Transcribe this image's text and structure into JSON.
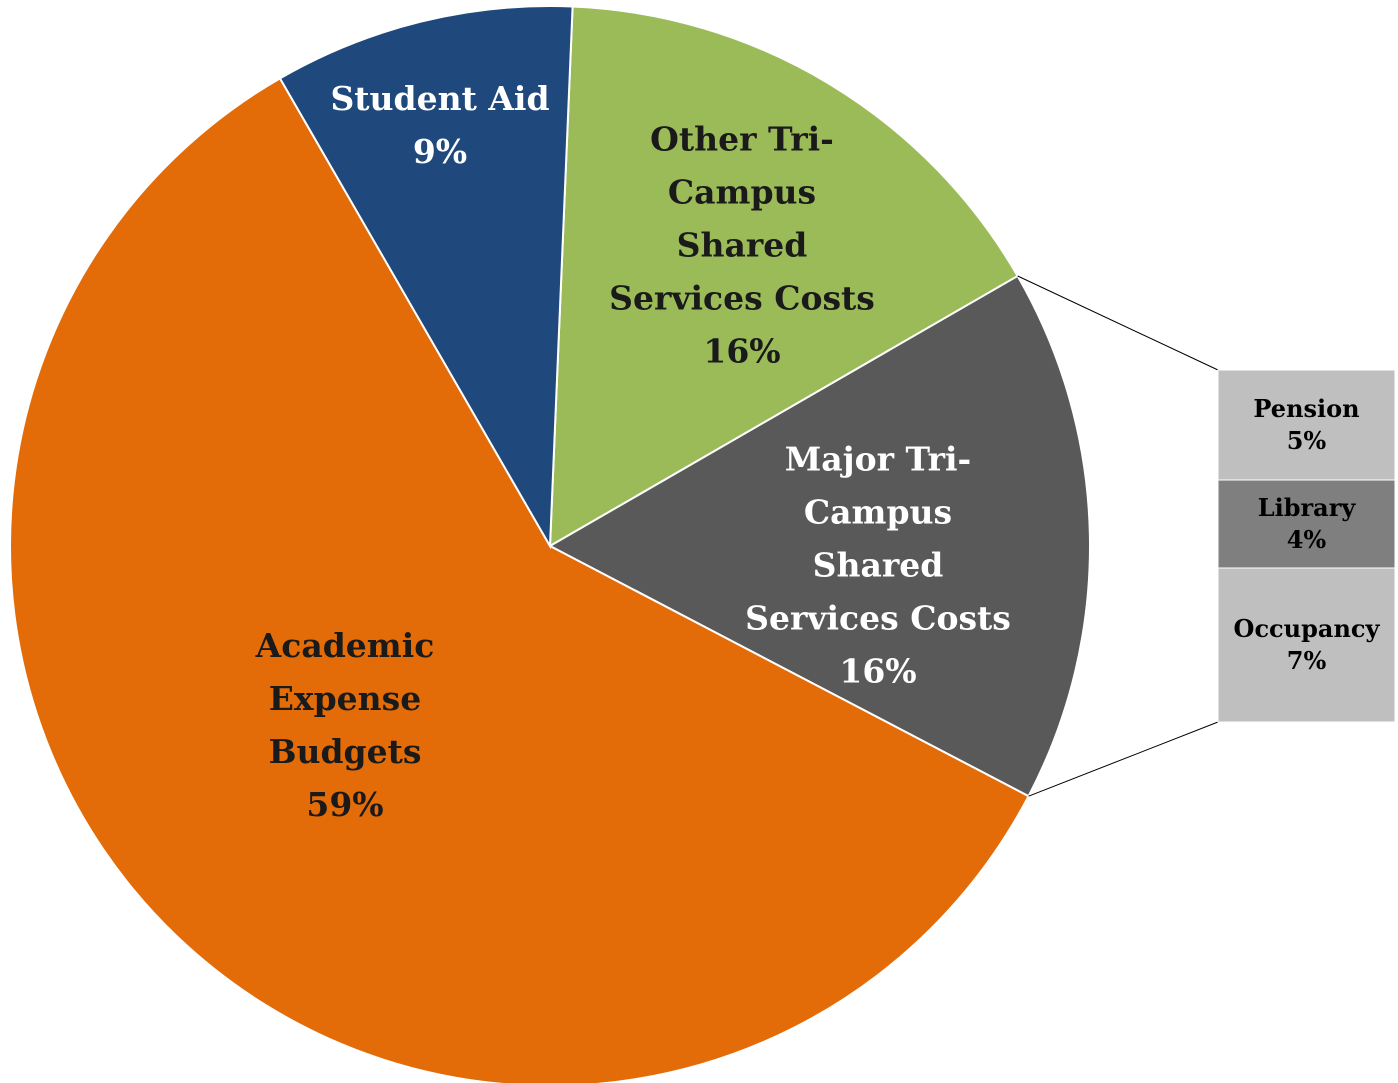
{
  "chart_data": {
    "type": "pie-of-bar",
    "categories": [
      "Other Tri-\nCampus\nShared\nServices Costs",
      "Major Tri-\nCampus\nShared\nServices Costs",
      "Academic\nExpense\nBudgets",
      "Student Aid"
    ],
    "values": [
      16,
      16,
      59,
      9
    ],
    "value_labels": [
      "16%",
      "16%",
      "59%",
      "9%"
    ],
    "colors": [
      "#9bbb59",
      "#595959",
      "#e36c09",
      "#1f497d"
    ],
    "breakdown": {
      "categories": [
        "Pension",
        "Library",
        "Occupancy"
      ],
      "values": [
        5,
        4,
        7
      ],
      "value_labels": [
        "5%",
        "4%",
        "7%"
      ],
      "colors": [
        "#bfbfbf",
        "#7f7f7f",
        "#bfbfbf"
      ]
    }
  }
}
